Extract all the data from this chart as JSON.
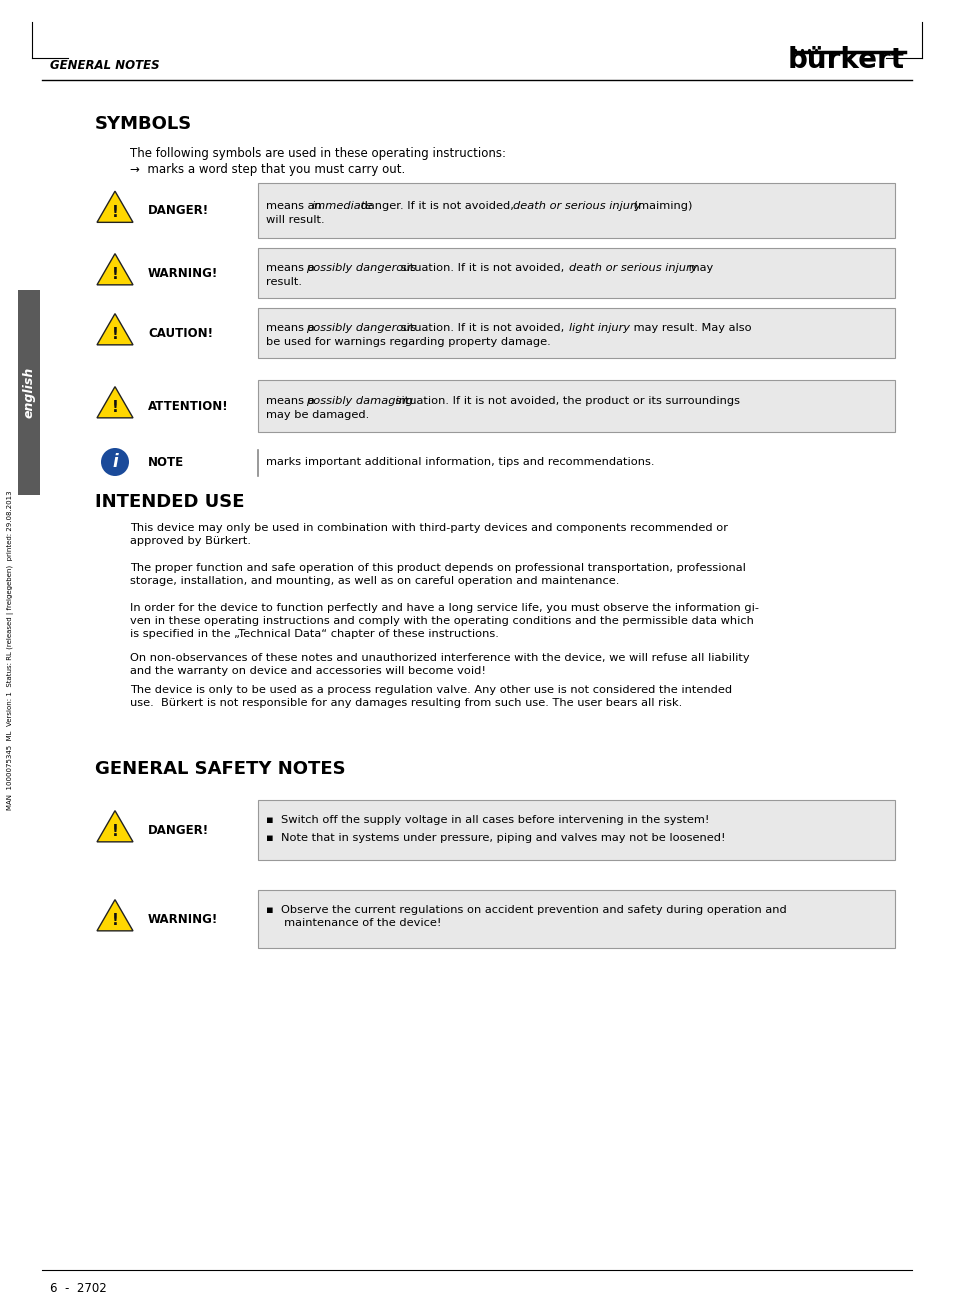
{
  "page_title": "GENERAL NOTES",
  "logo_text": "bürkert",
  "section1_title": "SYMBOLS",
  "section1_intro": "The following symbols are used in these operating instructions:",
  "arrow_text": "→  marks a word step that you must carry out.",
  "section2_title": "INTENDED USE",
  "intended_para1": "This device may only be used in combination with third-party devices and components recommended or\napproved by Bürkert.",
  "intended_para2": "The proper function and safe operation of this product depends on professional transportation, professional\nstorage, installation, and mounting, as well as on careful operation and maintenance.",
  "intended_para3a": "In order for the device to function perfectly and have a long service life, you must observe the information gi-\nven in these operating instructions and comply with the operating conditions and the permissible data which\nis specified in the „Technical Data“ chapter of these instructions.",
  "intended_para3b": "On non-observances of these notes and unauthorized interference with the device, we will refuse all liability\nand the warranty on device and accessories will become void!",
  "intended_para3c": "The device is only to be used as a process regulation valve. Any other use is not considered the intended\nuse.  Bürkert is not responsible for any damages resulting from such use. The user bears all risk.",
  "section3_title": "GENERAL SAFETY NOTES",
  "footer_text": "6  -  2702",
  "side_label": "english",
  "bg_color": "#FFFFFF",
  "text_color": "#000000",
  "box_bg": "#E8E8E8",
  "box_edge": "#999999",
  "tri_color": "#FFD700",
  "info_color": "#1A4A9A"
}
